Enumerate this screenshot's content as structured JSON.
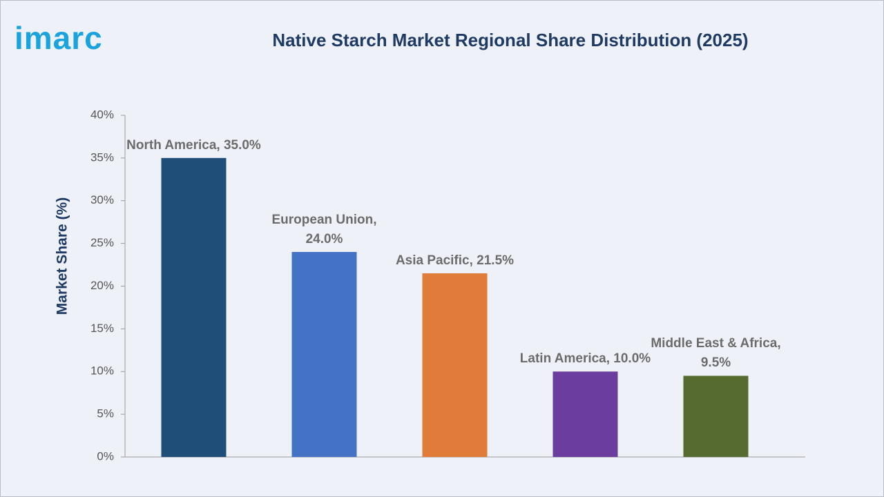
{
  "logo": "imarc",
  "chart_data": {
    "type": "bar",
    "title": "Native Starch Market Regional Share Distribution (2025)",
    "y_label": "Market Share (%)",
    "values": [
      35.0,
      24.0,
      21.5,
      10.0,
      9.5
    ],
    "value_labels": [
      "North America, 35.0%",
      "European Union, 24.0%",
      "Asia Pacific, 21.5%",
      "Latin America, 10.0%",
      "Middle East & Africa, 9.5%"
    ],
    "colors": [
      "#1f4e79",
      "#4472c4",
      "#e07b39",
      "#6b3d9e",
      "#556b2f"
    ],
    "ylim": [
      0,
      40
    ],
    "yticks": [
      {
        "value": 0,
        "label": "0%"
      },
      {
        "value": 5,
        "label": "5%"
      },
      {
        "value": 10,
        "label": "10%"
      },
      {
        "value": 15,
        "label": "15%"
      },
      {
        "value": 20,
        "label": "20%"
      },
      {
        "value": 25,
        "label": "25%"
      },
      {
        "value": 30,
        "label": "30%"
      },
      {
        "value": 35,
        "label": "35%"
      },
      {
        "value": 40,
        "label": "40%"
      }
    ],
    "grid": false
  }
}
